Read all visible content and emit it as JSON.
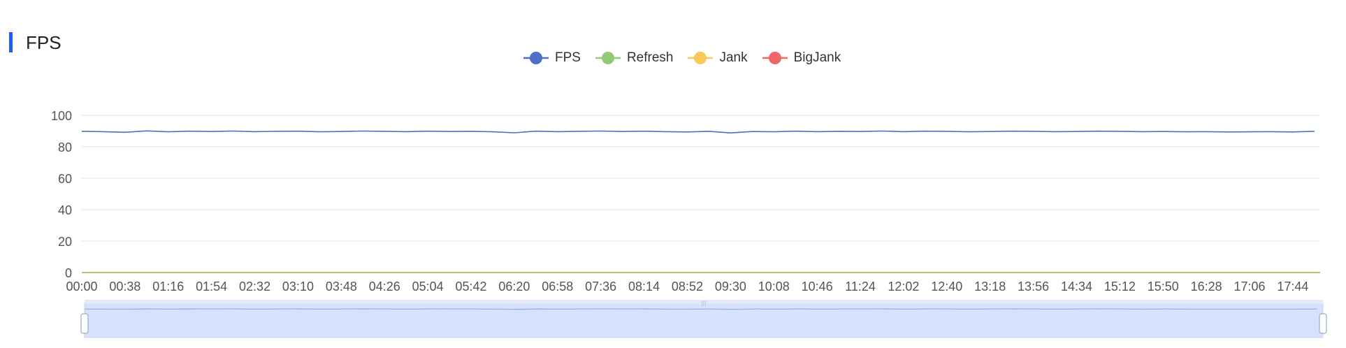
{
  "title": "FPS",
  "colors": {
    "title_accent": "#1f5bf6",
    "fps": "#4d6fc9",
    "refresh": "#91cc75",
    "jank": "#fac858",
    "bigjank": "#ee6666",
    "grid": "#e3e3e3",
    "axis_text": "#555555",
    "zoom_fill": "#d6e2fb",
    "zoom_line": "#8faee8"
  },
  "legend": [
    {
      "name": "FPS",
      "color": "#4d6fc9"
    },
    {
      "name": "Refresh",
      "color": "#91cc75"
    },
    {
      "name": "Jank",
      "color": "#fac858"
    },
    {
      "name": "BigJank",
      "color": "#ee6666"
    }
  ],
  "chart_data": {
    "type": "line",
    "title": "FPS",
    "xlabel": "",
    "ylabel": "",
    "ylim": [
      0,
      100
    ],
    "yticks": [
      0,
      20,
      40,
      60,
      80,
      100
    ],
    "x_ticks": [
      "00:00",
      "00:38",
      "01:16",
      "01:54",
      "02:32",
      "03:10",
      "03:48",
      "04:26",
      "05:04",
      "05:42",
      "06:20",
      "06:58",
      "07:36",
      "08:14",
      "08:52",
      "09:30",
      "10:08",
      "10:46",
      "11:24",
      "12:02",
      "12:40",
      "13:18",
      "13:56",
      "14:34",
      "15:12",
      "15:50",
      "16:28",
      "17:06",
      "17:44"
    ],
    "x_range": [
      "00:00",
      "18:08"
    ],
    "grid": true,
    "legend_position": "top-center",
    "data_zoom": true,
    "series": [
      {
        "name": "FPS",
        "x": [
          "00:00",
          "00:19",
          "00:38",
          "00:57",
          "01:16",
          "01:35",
          "01:54",
          "02:13",
          "02:32",
          "02:51",
          "03:10",
          "03:29",
          "03:48",
          "04:07",
          "04:26",
          "04:45",
          "05:04",
          "05:23",
          "05:42",
          "06:01",
          "06:20",
          "06:39",
          "06:58",
          "07:17",
          "07:36",
          "07:55",
          "08:14",
          "08:33",
          "08:52",
          "09:11",
          "09:30",
          "09:49",
          "10:08",
          "10:27",
          "10:46",
          "11:05",
          "11:24",
          "11:43",
          "12:02",
          "12:21",
          "12:40",
          "12:59",
          "13:18",
          "13:37",
          "13:56",
          "14:15",
          "14:34",
          "14:53",
          "15:12",
          "15:31",
          "15:50",
          "16:09",
          "16:28",
          "16:47",
          "17:06",
          "17:25",
          "17:44",
          "18:03"
        ],
        "values": [
          89.8,
          89.6,
          89.2,
          90.1,
          89.5,
          89.9,
          89.7,
          90.0,
          89.6,
          89.8,
          89.9,
          89.5,
          89.7,
          90.0,
          89.8,
          89.6,
          89.9,
          89.7,
          89.8,
          89.5,
          88.9,
          89.9,
          89.6,
          89.8,
          90.0,
          89.7,
          89.9,
          89.6,
          89.4,
          89.8,
          88.8,
          89.7,
          89.5,
          89.9,
          89.6,
          89.8,
          89.7,
          90.0,
          89.6,
          89.9,
          89.8,
          89.5,
          89.7,
          89.9,
          89.8,
          89.6,
          89.7,
          89.9,
          89.8,
          89.6,
          89.7,
          89.5,
          89.6,
          89.4,
          89.5,
          89.6,
          89.4,
          89.8
        ]
      },
      {
        "name": "Refresh",
        "x": [
          "00:00",
          "18:08"
        ],
        "values": [
          0,
          0
        ]
      },
      {
        "name": "Jank",
        "x": [
          "00:00",
          "18:08"
        ],
        "values": [
          0,
          0
        ]
      },
      {
        "name": "BigJank",
        "x": [
          "00:00",
          "18:08"
        ],
        "values": [
          0,
          0
        ]
      }
    ]
  }
}
